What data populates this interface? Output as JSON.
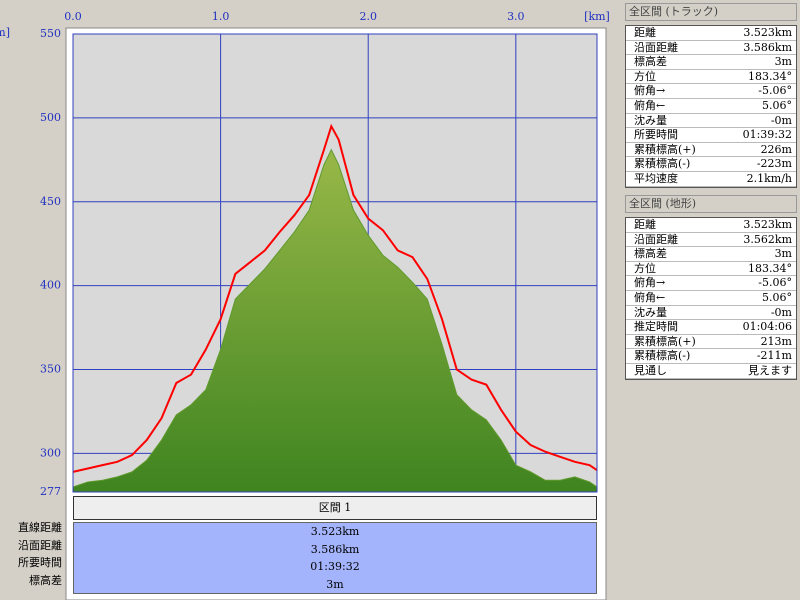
{
  "chart_data": {
    "type": "area",
    "x_label": "[km]",
    "y_label": "[m]",
    "x": [
      0,
      0.1,
      0.2,
      0.3,
      0.4,
      0.5,
      0.6,
      0.7,
      0.8,
      0.9,
      1.0,
      1.1,
      1.2,
      1.3,
      1.4,
      1.5,
      1.6,
      1.7,
      1.75,
      1.8,
      1.9,
      2.0,
      2.1,
      2.2,
      2.3,
      2.4,
      2.5,
      2.6,
      2.7,
      2.8,
      2.9,
      3.0,
      3.1,
      3.2,
      3.3,
      3.4,
      3.5,
      3.55
    ],
    "series": [
      {
        "name": "地形",
        "color": "#5f9a2c",
        "values": [
          280,
          283,
          284,
          286,
          289,
          296,
          308,
          323,
          329,
          338,
          362,
          392,
          401,
          410,
          421,
          432,
          445,
          472,
          481,
          472,
          445,
          430,
          418,
          411,
          402,
          392,
          365,
          335,
          326,
          320,
          308,
          293,
          289,
          284,
          284,
          286,
          283,
          280
        ]
      },
      {
        "name": "トラック",
        "color": "#ff0000",
        "values": [
          289,
          291,
          293,
          295,
          299,
          308,
          321,
          342,
          347,
          362,
          380,
          407,
          414,
          421,
          432,
          442,
          454,
          481,
          495,
          487,
          454,
          440,
          433,
          421,
          417,
          404,
          380,
          350,
          344,
          341,
          326,
          313,
          305,
          301,
          298,
          295,
          293,
          290
        ]
      }
    ],
    "xlim": [
      0,
      3.55
    ],
    "xticks": [
      {
        "value": 0,
        "label": "0.0"
      },
      {
        "value": 1,
        "label": "1.0"
      },
      {
        "value": 2,
        "label": "2.0"
      },
      {
        "value": 3,
        "label": "3.0"
      }
    ],
    "ylim": [
      277,
      550
    ],
    "yticks": [
      277,
      300,
      350,
      400,
      450,
      500,
      550
    ],
    "grid": true
  },
  "track_panel": {
    "title": "全区間 (トラック)",
    "rows": [
      [
        "距離",
        "3.523km"
      ],
      [
        "沿面距離",
        "3.586km"
      ],
      [
        "標高差",
        "3m"
      ],
      [
        "方位",
        "183.34°"
      ],
      [
        "俯角→",
        "-5.06°"
      ],
      [
        "俯角←",
        "5.06°"
      ],
      [
        "沈み量",
        "-0m"
      ],
      [
        "所要時間",
        "01:39:32"
      ],
      [
        "累積標高(+)",
        "226m"
      ],
      [
        "累積標高(-)",
        "-223m"
      ],
      [
        "平均速度",
        "2.1km/h"
      ]
    ]
  },
  "terrain_panel": {
    "title": "全区間 (地形)",
    "rows": [
      [
        "距離",
        "3.523km"
      ],
      [
        "沿面距離",
        "3.562km"
      ],
      [
        "標高差",
        "3m"
      ],
      [
        "方位",
        "183.34°"
      ],
      [
        "俯角→",
        "-5.06°"
      ],
      [
        "俯角←",
        "5.06°"
      ],
      [
        "沈み量",
        "-0m"
      ],
      [
        "推定時間",
        "01:04:06"
      ],
      [
        "累積標高(+)",
        "213m"
      ],
      [
        "累積標高(-)",
        "-211m"
      ],
      [
        "見通し",
        "見えます"
      ]
    ]
  },
  "section_panel": {
    "title": "区間 1",
    "labels": [
      "直線距離",
      "沿面距離",
      "所要時間",
      "標高差"
    ],
    "values": [
      "3.523km",
      "3.586km",
      "01:39:32",
      "3m"
    ]
  }
}
